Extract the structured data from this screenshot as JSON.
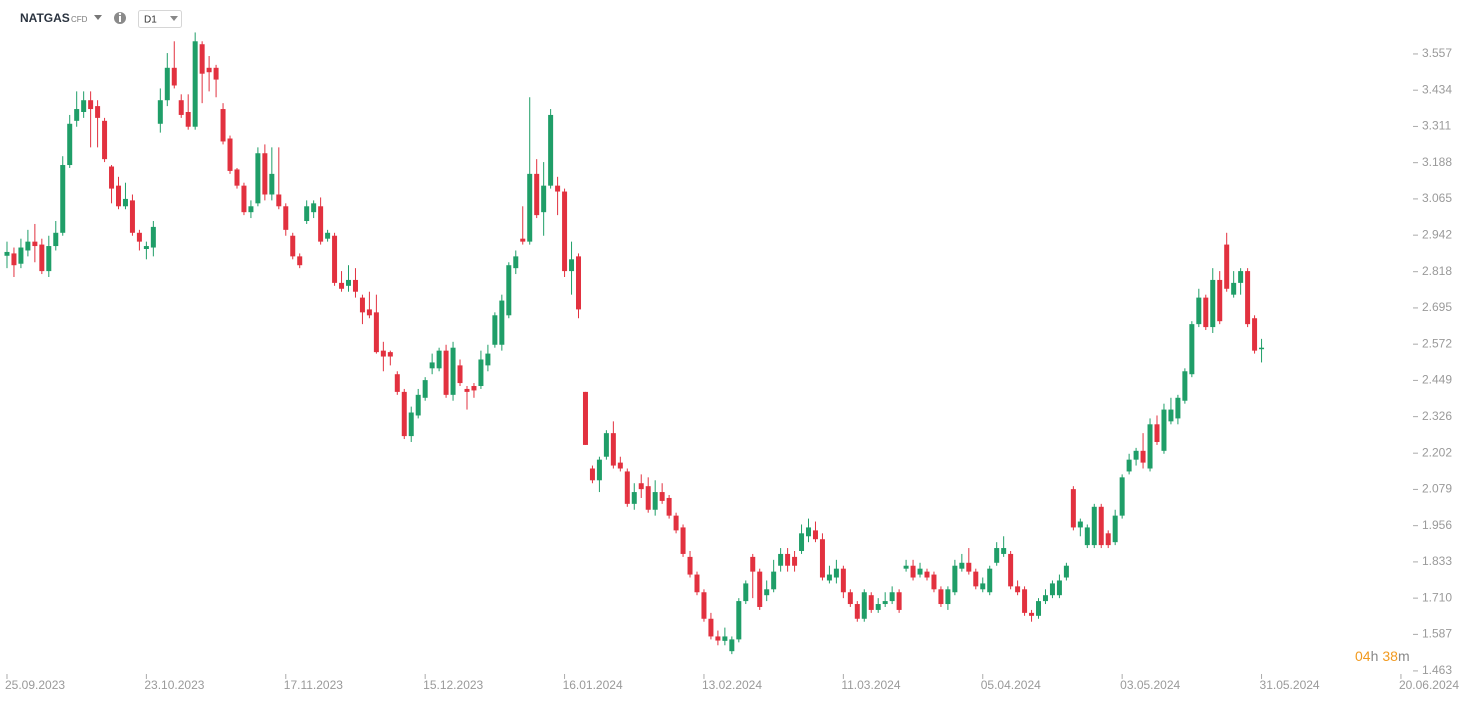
{
  "header": {
    "symbol": "NATGAS",
    "kind": "CFD",
    "interval": "D1"
  },
  "countdown": {
    "hours": "04",
    "hours_unit": "h",
    "minutes": "38",
    "minutes_unit": "m"
  },
  "chart_data": {
    "type": "candlestick",
    "up_color": "#1f9e68",
    "down_color": "#e2313f",
    "xlim": [
      -0.5,
      201.3
    ],
    "xticks": [
      {
        "value": 0,
        "label": "25.09.2023"
      },
      {
        "value": 20,
        "label": "23.10.2023"
      },
      {
        "value": 40,
        "label": "17.11.2023"
      },
      {
        "value": 60,
        "label": "15.12.2023"
      },
      {
        "value": 80,
        "label": "16.01.2024"
      },
      {
        "value": 100,
        "label": "13.02.2024"
      },
      {
        "value": 120,
        "label": "11.03.2024"
      },
      {
        "value": 140,
        "label": "05.04.2024"
      },
      {
        "value": 160,
        "label": "03.05.2024"
      },
      {
        "value": 180,
        "label": "31.05.2024"
      },
      {
        "value": 200,
        "label": "20.06.2024"
      }
    ],
    "ylim": [
      1.405,
      3.64
    ],
    "yticks": [
      3.557,
      3.434,
      3.311,
      3.188,
      3.065,
      2.942,
      2.818,
      2.695,
      2.572,
      2.449,
      2.326,
      2.202,
      2.079,
      1.956,
      1.833,
      {
        "value": 1.71,
        "label": "1.710"
      },
      1.587,
      1.463
    ],
    "open": [
      2.872,
      2.88,
      2.845,
      2.89,
      2.92,
      2.91,
      2.82,
      2.905,
      2.95,
      3.18,
      3.33,
      3.36,
      3.4,
      3.38,
      3.33,
      3.175,
      3.11,
      3.04,
      3.06,
      2.95,
      2.895,
      2.9,
      3.32,
      3.4,
      3.51,
      3.4,
      3.36,
      3.31,
      3.59,
      3.51,
      3.51,
      3.37,
      3.27,
      3.165,
      3.11,
      3.02,
      3.05,
      3.22,
      3.08,
      3.08,
      3.04,
      2.94,
      2.87,
      2.99,
      3.02,
      3.04,
      2.93,
      2.94,
      2.78,
      2.77,
      2.79,
      2.73,
      2.69,
      2.68,
      2.55,
      2.545,
      2.47,
      2.41,
      2.26,
      2.33,
      2.39,
      2.49,
      2.49,
      2.55,
      2.4,
      2.5,
      2.42,
      2.43,
      2.43,
      2.5,
      2.57,
      2.57,
      2.67,
      2.83,
      2.93,
      2.92,
      3.15,
      3.02,
      3.11,
      3.11,
      3.09,
      2.82,
      2.87,
      2.41,
      2.15,
      2.11,
      2.19,
      2.27,
      2.17,
      2.14,
      2.03,
      2.1,
      2.09,
      2.01,
      2.07,
      2.05,
      1.99,
      1.95,
      1.85,
      1.79,
      1.73,
      1.64,
      1.58,
      1.565,
      1.53,
      1.57,
      1.7,
      1.85,
      1.8,
      1.72,
      1.74,
      1.82,
      1.86,
      1.85,
      1.87,
      1.92,
      1.94,
      1.91,
      1.77,
      1.78,
      1.81,
      1.73,
      1.69,
      1.64,
      1.72,
      1.67,
      1.69,
      1.7,
      1.73,
      1.81,
      1.82,
      1.79,
      1.8,
      1.79,
      1.74,
      1.69,
      1.73,
      1.81,
      1.83,
      1.8,
      1.74,
      1.73,
      1.83,
      1.86,
      1.86,
      1.75,
      1.74,
      1.66,
      1.65,
      1.7,
      1.72,
      1.72,
      1.78,
      2.08,
      1.95,
      1.89,
      1.89,
      2.02,
      1.93,
      1.9,
      1.99,
      2.14,
      2.18,
      2.21,
      2.15,
      2.3,
      2.21,
      2.31,
      2.32,
      2.38,
      2.47,
      2.64,
      2.73,
      2.63,
      2.79,
      2.91,
      2.74,
      2.78,
      2.82,
      2.66,
      2.555
    ],
    "high": [
      2.92,
      2.9,
      2.93,
      2.96,
      2.98,
      2.93,
      2.94,
      2.99,
      3.21,
      3.35,
      3.43,
      3.43,
      3.43,
      3.4,
      3.34,
      3.18,
      3.14,
      3.12,
      3.08,
      2.96,
      2.92,
      2.99,
      3.44,
      3.56,
      3.6,
      3.42,
      3.42,
      3.63,
      3.6,
      3.55,
      3.52,
      3.39,
      3.28,
      3.17,
      3.12,
      3.06,
      3.24,
      3.25,
      3.24,
      3.24,
      3.05,
      2.95,
      2.88,
      3.06,
      3.06,
      3.07,
      2.96,
      2.95,
      2.82,
      2.84,
      2.83,
      2.74,
      2.75,
      2.74,
      2.58,
      2.55,
      2.48,
      2.42,
      2.36,
      2.42,
      2.46,
      2.54,
      2.56,
      2.57,
      2.58,
      2.52,
      2.43,
      2.44,
      2.55,
      2.57,
      2.68,
      2.74,
      2.85,
      2.89,
      3.04,
      3.41,
      3.2,
      3.19,
      3.37,
      3.14,
      3.1,
      2.92,
      2.88,
      2.41,
      2.16,
      2.19,
      2.28,
      2.31,
      2.19,
      2.15,
      2.1,
      2.13,
      2.12,
      2.11,
      2.1,
      2.06,
      2.0,
      1.96,
      1.87,
      1.8,
      1.74,
      1.66,
      1.6,
      1.61,
      1.58,
      1.71,
      1.77,
      1.86,
      1.81,
      1.77,
      1.84,
      1.88,
      1.88,
      1.87,
      1.96,
      1.98,
      1.97,
      1.93,
      1.82,
      1.84,
      1.82,
      1.74,
      1.7,
      1.74,
      1.73,
      1.71,
      1.73,
      1.75,
      1.74,
      1.84,
      1.84,
      1.83,
      1.81,
      1.8,
      1.75,
      1.75,
      1.84,
      1.86,
      1.88,
      1.81,
      1.78,
      1.82,
      1.9,
      1.92,
      1.87,
      1.77,
      1.75,
      1.67,
      1.71,
      1.74,
      1.77,
      1.79,
      1.83,
      2.09,
      1.98,
      1.96,
      2.03,
      2.03,
      1.94,
      2.01,
      2.13,
      2.2,
      2.22,
      2.27,
      2.32,
      2.33,
      2.37,
      2.39,
      2.4,
      2.49,
      2.65,
      2.76,
      2.74,
      2.83,
      2.82,
      2.95,
      2.82,
      2.83,
      2.83,
      2.67,
      2.59
    ],
    "low": [
      2.83,
      2.8,
      2.83,
      2.87,
      2.85,
      2.81,
      2.8,
      2.89,
      2.94,
      3.17,
      3.31,
      3.34,
      3.24,
      3.24,
      3.19,
      3.05,
      3.03,
      3.03,
      2.94,
      2.89,
      2.86,
      2.87,
      3.29,
      3.38,
      3.44,
      3.34,
      3.3,
      3.3,
      3.39,
      3.43,
      3.41,
      3.25,
      3.15,
      3.1,
      3.01,
      3.0,
      3.04,
      3.06,
      3.06,
      3.03,
      2.94,
      2.86,
      2.83,
      2.98,
      3.0,
      2.91,
      2.92,
      2.77,
      2.75,
      2.75,
      2.73,
      2.64,
      2.66,
      2.54,
      2.48,
      2.5,
      2.4,
      2.25,
      2.24,
      2.32,
      2.38,
      2.47,
      2.48,
      2.39,
      2.38,
      2.43,
      2.35,
      2.39,
      2.42,
      2.48,
      2.56,
      2.55,
      2.66,
      2.81,
      2.91,
      2.91,
      3.0,
      2.94,
      3.1,
      3.01,
      2.8,
      2.74,
      2.66,
      2.23,
      2.1,
      2.07,
      2.18,
      2.15,
      2.14,
      2.02,
      2.01,
      2.05,
      2.0,
      1.99,
      2.03,
      1.98,
      1.93,
      1.85,
      1.78,
      1.72,
      1.63,
      1.57,
      1.55,
      1.55,
      1.52,
      1.56,
      1.69,
      1.71,
      1.67,
      1.7,
      1.73,
      1.8,
      1.8,
      1.8,
      1.86,
      1.9,
      1.9,
      1.77,
      1.76,
      1.76,
      1.71,
      1.68,
      1.63,
      1.63,
      1.66,
      1.66,
      1.68,
      1.69,
      1.66,
      1.8,
      1.77,
      1.78,
      1.77,
      1.73,
      1.68,
      1.67,
      1.72,
      1.8,
      1.79,
      1.74,
      1.73,
      1.72,
      1.82,
      1.85,
      1.74,
      1.72,
      1.65,
      1.63,
      1.64,
      1.69,
      1.71,
      1.71,
      1.77,
      1.94,
      1.92,
      1.88,
      1.88,
      1.88,
      1.88,
      1.89,
      1.98,
      2.13,
      2.16,
      2.15,
      2.14,
      2.23,
      2.2,
      2.3,
      2.3,
      2.37,
      2.46,
      2.63,
      2.62,
      2.61,
      2.64,
      2.75,
      2.73,
      2.74,
      2.63,
      2.54,
      2.51
    ],
    "close": [
      2.885,
      2.84,
      2.9,
      2.92,
      2.905,
      2.82,
      2.905,
      2.95,
      3.18,
      3.32,
      3.37,
      3.4,
      3.37,
      3.34,
      3.2,
      3.1,
      3.04,
      3.065,
      2.95,
      2.92,
      2.905,
      2.97,
      3.4,
      3.51,
      3.45,
      3.35,
      3.31,
      3.6,
      3.49,
      3.495,
      3.47,
      3.26,
      3.16,
      3.11,
      3.02,
      3.04,
      3.22,
      3.08,
      3.15,
      3.04,
      2.96,
      2.87,
      2.84,
      3.04,
      3.05,
      2.92,
      2.95,
      2.78,
      2.76,
      2.79,
      2.75,
      2.68,
      2.67,
      2.545,
      2.53,
      2.53,
      2.41,
      2.26,
      2.34,
      2.4,
      2.45,
      2.51,
      2.55,
      2.4,
      2.56,
      2.44,
      2.41,
      2.415,
      2.52,
      2.54,
      2.67,
      2.72,
      2.84,
      2.87,
      2.92,
      3.15,
      3.01,
      3.11,
      3.35,
      3.09,
      2.82,
      2.86,
      2.69,
      2.23,
      2.11,
      2.18,
      2.27,
      2.16,
      2.15,
      2.03,
      2.07,
      2.08,
      2.01,
      2.07,
      2.04,
      1.99,
      1.94,
      1.86,
      1.79,
      1.73,
      1.64,
      1.58,
      1.566,
      1.58,
      1.57,
      1.7,
      1.76,
      1.8,
      1.68,
      1.74,
      1.8,
      1.86,
      1.82,
      1.82,
      1.93,
      1.95,
      1.91,
      1.78,
      1.79,
      1.81,
      1.73,
      1.69,
      1.64,
      1.73,
      1.67,
      1.69,
      1.7,
      1.73,
      1.67,
      1.82,
      1.78,
      1.81,
      1.78,
      1.74,
      1.69,
      1.74,
      1.82,
      1.83,
      1.8,
      1.75,
      1.76,
      1.81,
      1.88,
      1.88,
      1.75,
      1.73,
      1.66,
      1.65,
      1.7,
      1.72,
      1.76,
      1.77,
      1.82,
      1.95,
      1.97,
      1.95,
      2.02,
      1.89,
      1.89,
      1.99,
      2.12,
      2.18,
      2.21,
      2.17,
      2.3,
      2.24,
      2.35,
      2.35,
      2.39,
      2.48,
      2.64,
      2.73,
      2.63,
      2.79,
      2.65,
      2.76,
      2.78,
      2.82,
      2.64,
      2.55,
      2.56
    ]
  }
}
